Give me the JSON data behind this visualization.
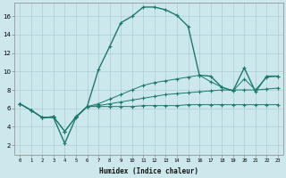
{
  "xlabel": "Humidex (Indice chaleur)",
  "background_color": "#cde8ec",
  "grid_color": "#a8cdd4",
  "line_color": "#1a7a6e",
  "xlim": [
    -0.5,
    23.5
  ],
  "ylim": [
    1,
    17.5
  ],
  "xticks": [
    0,
    1,
    2,
    3,
    4,
    5,
    6,
    7,
    8,
    9,
    10,
    11,
    12,
    13,
    14,
    15,
    16,
    17,
    18,
    19,
    20,
    21,
    22,
    23
  ],
  "yticks": [
    2,
    4,
    6,
    8,
    10,
    12,
    14,
    16
  ],
  "series": [
    {
      "x": [
        0,
        1,
        2,
        3,
        4,
        5,
        6,
        7,
        8,
        9,
        10,
        11,
        12,
        13,
        14,
        15,
        16,
        17,
        18,
        19,
        20,
        21,
        22,
        23
      ],
      "y": [
        6.5,
        5.8,
        5.0,
        5.0,
        2.2,
        5.0,
        6.2,
        10.2,
        12.7,
        15.3,
        16.0,
        17.0,
        17.0,
        16.7,
        16.1,
        14.9,
        9.6,
        9.5,
        8.3,
        7.9,
        10.4,
        7.8,
        9.5,
        9.5
      ]
    },
    {
      "x": [
        0,
        1,
        2,
        3,
        4,
        5,
        6,
        7,
        8,
        9,
        10,
        11,
        12,
        13,
        14,
        15,
        16,
        17,
        18,
        19,
        20,
        21,
        22,
        23
      ],
      "y": [
        6.5,
        5.8,
        5.0,
        5.1,
        3.5,
        5.1,
        6.2,
        6.5,
        7.0,
        7.5,
        8.0,
        8.5,
        8.8,
        9.0,
        9.2,
        9.4,
        9.6,
        8.9,
        8.3,
        7.9,
        9.2,
        8.0,
        9.4,
        9.5
      ]
    },
    {
      "x": [
        0,
        1,
        2,
        3,
        4,
        5,
        6,
        7,
        8,
        9,
        10,
        11,
        12,
        13,
        14,
        15,
        16,
        17,
        18,
        19,
        20,
        21,
        22,
        23
      ],
      "y": [
        6.5,
        5.8,
        5.0,
        5.1,
        3.5,
        5.1,
        6.2,
        6.3,
        6.5,
        6.7,
        6.9,
        7.1,
        7.3,
        7.5,
        7.6,
        7.7,
        7.8,
        7.9,
        8.0,
        8.0,
        8.0,
        8.0,
        8.1,
        8.2
      ]
    },
    {
      "x": [
        0,
        1,
        2,
        3,
        4,
        5,
        6,
        7,
        8,
        9,
        10,
        11,
        12,
        13,
        14,
        15,
        16,
        17,
        18,
        19,
        20,
        21,
        22,
        23
      ],
      "y": [
        6.5,
        5.8,
        5.0,
        5.1,
        3.5,
        5.1,
        6.2,
        6.2,
        6.2,
        6.2,
        6.2,
        6.3,
        6.3,
        6.3,
        6.3,
        6.4,
        6.4,
        6.4,
        6.4,
        6.4,
        6.4,
        6.4,
        6.4,
        6.4
      ]
    }
  ]
}
